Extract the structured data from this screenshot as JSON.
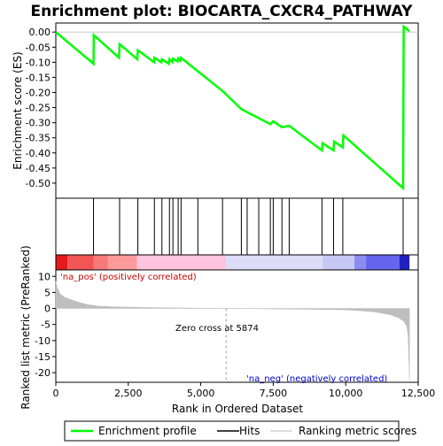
{
  "chart_data": {
    "type": "line",
    "title": "Enrichment plot: BIOCARTA_CXCR4_PATHWAY",
    "xlabel": "Rank in Ordered Dataset",
    "ylabel_top": "Enrichment score (ES)",
    "ylabel_bottom": "Ranked list metric (PreRanked)",
    "xlim": [
      0,
      12500
    ],
    "x_ticks": [
      0,
      2500,
      5000,
      7500,
      10000,
      12500
    ],
    "x_tick_labels": [
      "0",
      "2,500",
      "5,000",
      "7,500",
      "10,000",
      "12,500"
    ],
    "es_ylim": [
      -0.55,
      0.03
    ],
    "es_ticks": [
      0.0,
      -0.05,
      -0.1,
      -0.15,
      -0.2,
      -0.25,
      -0.3,
      -0.35,
      -0.4,
      -0.45,
      -0.5
    ],
    "es_tick_labels": [
      "0.00",
      "-0.05",
      "-0.10",
      "-0.15",
      "-0.20",
      "-0.25",
      "-0.30",
      "-0.35",
      "-0.40",
      "-0.45",
      "-0.50"
    ],
    "metric_ylim": [
      -23,
      12
    ],
    "metric_ticks": [
      10,
      5,
      0,
      -5,
      -10,
      -15,
      -20
    ],
    "metric_tick_labels": [
      "10",
      "5",
      "0",
      "-5",
      "-10",
      "-15",
      "-20"
    ],
    "enrichment_profile": {
      "x": [
        0,
        1300,
        1310,
        2180,
        2200,
        2810,
        2830,
        3390,
        3400,
        3640,
        3660,
        3900,
        3920,
        4020,
        4040,
        4200,
        4220,
        4300,
        4320,
        4900,
        5750,
        6400,
        6600,
        7000,
        7400,
        7500,
        7800,
        8050,
        9180,
        9200,
        9580,
        9600,
        9900,
        9920,
        11980,
        12000,
        12200
      ],
      "y": [
        0.0,
        -0.105,
        -0.01,
        -0.085,
        -0.04,
        -0.09,
        -0.06,
        -0.1,
        -0.085,
        -0.1,
        -0.09,
        -0.105,
        -0.09,
        -0.1,
        -0.088,
        -0.097,
        -0.087,
        -0.095,
        -0.085,
        -0.13,
        -0.195,
        -0.255,
        -0.265,
        -0.285,
        -0.305,
        -0.295,
        -0.315,
        -0.31,
        -0.392,
        -0.368,
        -0.392,
        -0.362,
        -0.382,
        -0.342,
        -0.517,
        0.018,
        0.003
      ]
    },
    "hits": [
      1300,
      2200,
      2830,
      3400,
      3660,
      3920,
      4040,
      4220,
      4320,
      4900,
      5750,
      6400,
      6600,
      7000,
      7400,
      7500,
      7800,
      8050,
      9180,
      9580,
      9900,
      11980
    ],
    "ranked_metric": {
      "x": [
        0,
        50,
        150,
        300,
        500,
        800,
        1100,
        1500,
        2000,
        3000,
        4000,
        5000,
        5874,
        7000,
        8000,
        9000,
        10000,
        10500,
        11000,
        11500,
        11800,
        12000,
        12100,
        12150,
        12200
      ],
      "y": [
        8.5,
        6.5,
        4.5,
        3.5,
        2.8,
        1.9,
        1.2,
        0.7,
        0.5,
        0.3,
        0.2,
        0.1,
        0.0,
        -0.1,
        -0.2,
        -0.3,
        -0.45,
        -0.7,
        -1.1,
        -1.9,
        -2.8,
        -4.0,
        -5.5,
        -8.0,
        -22.5
      ]
    },
    "zero_cross": 5874,
    "zero_cross_label": "Zero cross at 5874",
    "pos_label": "'na_pos' (positively correlated)",
    "neg_label": "'na_neg' (negatively correlated)",
    "legend": {
      "placement": "bottom",
      "items": [
        {
          "label": "Enrichment profile",
          "color": "#00ff00"
        },
        {
          "label": "Hits",
          "color": "#000000"
        },
        {
          "label": "Ranking metric scores",
          "color": "#bebebe"
        }
      ]
    },
    "colors": {
      "profile": "#00ff00",
      "hits": "#000000",
      "metric": "#bebebe",
      "pos_text": "#cc0000",
      "neg_text": "#0000cc"
    },
    "heat_segments": [
      {
        "x0": 0,
        "x1": 400,
        "color": "#e41a1c"
      },
      {
        "x0": 400,
        "x1": 1300,
        "color": "#f25555"
      },
      {
        "x0": 1300,
        "x1": 1800,
        "color": "#f77a7a"
      },
      {
        "x0": 1800,
        "x1": 2800,
        "color": "#fb9a9a"
      },
      {
        "x0": 2800,
        "x1": 5874,
        "color": "#ffc4dd"
      },
      {
        "x0": 5874,
        "x1": 9200,
        "color": "#dcdcf8"
      },
      {
        "x0": 9200,
        "x1": 10300,
        "color": "#c8c8f4"
      },
      {
        "x0": 10300,
        "x1": 10700,
        "color": "#8c8cf0"
      },
      {
        "x0": 10700,
        "x1": 11850,
        "color": "#6464ee"
      },
      {
        "x0": 11850,
        "x1": 12200,
        "color": "#2020c0"
      }
    ]
  }
}
